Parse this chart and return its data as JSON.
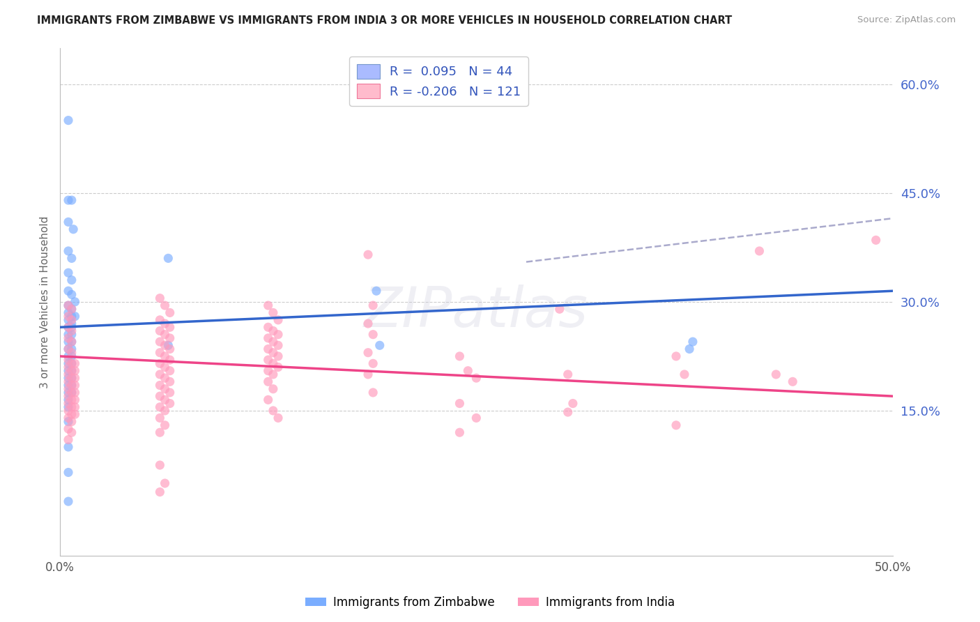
{
  "title": "IMMIGRANTS FROM ZIMBABWE VS IMMIGRANTS FROM INDIA 3 OR MORE VEHICLES IN HOUSEHOLD CORRELATION CHART",
  "source": "Source: ZipAtlas.com",
  "ylabel": "3 or more Vehicles in Household",
  "xlim": [
    0.0,
    0.5
  ],
  "ylim": [
    -0.05,
    0.65
  ],
  "right_yticks": [
    0.15,
    0.3,
    0.45,
    0.6
  ],
  "right_yticklabels": [
    "15.0%",
    "30.0%",
    "45.0%",
    "60.0%"
  ],
  "watermark": "ZIPatlas",
  "zimbabwe_color": "#7aadff",
  "india_color": "#ff99bb",
  "zimbabwe_line_color": "#3366cc",
  "india_line_color": "#ee4488",
  "dashed_line_color": "#aaaacc",
  "zim_line": [
    0.0,
    0.265,
    0.5,
    0.315
  ],
  "ind_line": [
    0.0,
    0.225,
    0.5,
    0.17
  ],
  "dash_line": [
    0.28,
    0.355,
    0.5,
    0.415
  ],
  "zimbabwe_points": [
    [
      0.005,
      0.55
    ],
    [
      0.005,
      0.44
    ],
    [
      0.007,
      0.44
    ],
    [
      0.005,
      0.41
    ],
    [
      0.008,
      0.4
    ],
    [
      0.005,
      0.37
    ],
    [
      0.007,
      0.36
    ],
    [
      0.005,
      0.34
    ],
    [
      0.007,
      0.33
    ],
    [
      0.005,
      0.315
    ],
    [
      0.007,
      0.31
    ],
    [
      0.009,
      0.3
    ],
    [
      0.005,
      0.295
    ],
    [
      0.007,
      0.29
    ],
    [
      0.005,
      0.285
    ],
    [
      0.007,
      0.28
    ],
    [
      0.009,
      0.28
    ],
    [
      0.005,
      0.275
    ],
    [
      0.007,
      0.27
    ],
    [
      0.005,
      0.265
    ],
    [
      0.007,
      0.265
    ],
    [
      0.005,
      0.255
    ],
    [
      0.007,
      0.255
    ],
    [
      0.005,
      0.245
    ],
    [
      0.007,
      0.245
    ],
    [
      0.005,
      0.235
    ],
    [
      0.007,
      0.235
    ],
    [
      0.005,
      0.225
    ],
    [
      0.007,
      0.225
    ],
    [
      0.005,
      0.215
    ],
    [
      0.007,
      0.215
    ],
    [
      0.005,
      0.205
    ],
    [
      0.007,
      0.205
    ],
    [
      0.005,
      0.195
    ],
    [
      0.007,
      0.195
    ],
    [
      0.005,
      0.185
    ],
    [
      0.007,
      0.185
    ],
    [
      0.005,
      0.175
    ],
    [
      0.007,
      0.175
    ],
    [
      0.005,
      0.165
    ],
    [
      0.005,
      0.155
    ],
    [
      0.005,
      0.135
    ],
    [
      0.005,
      0.1
    ],
    [
      0.005,
      0.065
    ],
    [
      0.005,
      0.025
    ],
    [
      0.065,
      0.36
    ],
    [
      0.065,
      0.24
    ],
    [
      0.19,
      0.315
    ],
    [
      0.192,
      0.24
    ],
    [
      0.38,
      0.245
    ],
    [
      0.378,
      0.235
    ]
  ],
  "india_points": [
    [
      0.005,
      0.295
    ],
    [
      0.007,
      0.29
    ],
    [
      0.005,
      0.28
    ],
    [
      0.007,
      0.275
    ],
    [
      0.005,
      0.265
    ],
    [
      0.007,
      0.26
    ],
    [
      0.005,
      0.25
    ],
    [
      0.007,
      0.245
    ],
    [
      0.005,
      0.235
    ],
    [
      0.007,
      0.23
    ],
    [
      0.005,
      0.22
    ],
    [
      0.007,
      0.215
    ],
    [
      0.009,
      0.215
    ],
    [
      0.005,
      0.21
    ],
    [
      0.007,
      0.205
    ],
    [
      0.009,
      0.205
    ],
    [
      0.005,
      0.2
    ],
    [
      0.007,
      0.195
    ],
    [
      0.009,
      0.195
    ],
    [
      0.005,
      0.19
    ],
    [
      0.007,
      0.185
    ],
    [
      0.009,
      0.185
    ],
    [
      0.005,
      0.18
    ],
    [
      0.007,
      0.175
    ],
    [
      0.009,
      0.175
    ],
    [
      0.005,
      0.17
    ],
    [
      0.007,
      0.165
    ],
    [
      0.009,
      0.165
    ],
    [
      0.005,
      0.16
    ],
    [
      0.007,
      0.155
    ],
    [
      0.009,
      0.155
    ],
    [
      0.005,
      0.15
    ],
    [
      0.007,
      0.145
    ],
    [
      0.009,
      0.145
    ],
    [
      0.005,
      0.14
    ],
    [
      0.007,
      0.135
    ],
    [
      0.005,
      0.125
    ],
    [
      0.007,
      0.12
    ],
    [
      0.005,
      0.11
    ],
    [
      0.06,
      0.305
    ],
    [
      0.063,
      0.295
    ],
    [
      0.066,
      0.285
    ],
    [
      0.06,
      0.275
    ],
    [
      0.063,
      0.27
    ],
    [
      0.066,
      0.265
    ],
    [
      0.06,
      0.26
    ],
    [
      0.063,
      0.255
    ],
    [
      0.066,
      0.25
    ],
    [
      0.06,
      0.245
    ],
    [
      0.063,
      0.24
    ],
    [
      0.066,
      0.235
    ],
    [
      0.06,
      0.23
    ],
    [
      0.063,
      0.225
    ],
    [
      0.066,
      0.22
    ],
    [
      0.06,
      0.215
    ],
    [
      0.063,
      0.21
    ],
    [
      0.066,
      0.205
    ],
    [
      0.06,
      0.2
    ],
    [
      0.063,
      0.195
    ],
    [
      0.066,
      0.19
    ],
    [
      0.06,
      0.185
    ],
    [
      0.063,
      0.18
    ],
    [
      0.066,
      0.175
    ],
    [
      0.06,
      0.17
    ],
    [
      0.063,
      0.165
    ],
    [
      0.066,
      0.16
    ],
    [
      0.06,
      0.155
    ],
    [
      0.063,
      0.15
    ],
    [
      0.06,
      0.14
    ],
    [
      0.063,
      0.13
    ],
    [
      0.06,
      0.12
    ],
    [
      0.06,
      0.075
    ],
    [
      0.063,
      0.05
    ],
    [
      0.06,
      0.038
    ],
    [
      0.125,
      0.295
    ],
    [
      0.128,
      0.285
    ],
    [
      0.131,
      0.275
    ],
    [
      0.125,
      0.265
    ],
    [
      0.128,
      0.26
    ],
    [
      0.131,
      0.255
    ],
    [
      0.125,
      0.25
    ],
    [
      0.128,
      0.245
    ],
    [
      0.131,
      0.24
    ],
    [
      0.125,
      0.235
    ],
    [
      0.128,
      0.23
    ],
    [
      0.131,
      0.225
    ],
    [
      0.125,
      0.22
    ],
    [
      0.128,
      0.215
    ],
    [
      0.131,
      0.21
    ],
    [
      0.125,
      0.205
    ],
    [
      0.128,
      0.2
    ],
    [
      0.125,
      0.19
    ],
    [
      0.128,
      0.18
    ],
    [
      0.125,
      0.165
    ],
    [
      0.128,
      0.15
    ],
    [
      0.131,
      0.14
    ],
    [
      0.185,
      0.365
    ],
    [
      0.188,
      0.295
    ],
    [
      0.185,
      0.27
    ],
    [
      0.188,
      0.255
    ],
    [
      0.185,
      0.23
    ],
    [
      0.188,
      0.215
    ],
    [
      0.185,
      0.2
    ],
    [
      0.188,
      0.175
    ],
    [
      0.24,
      0.225
    ],
    [
      0.245,
      0.205
    ],
    [
      0.25,
      0.195
    ],
    [
      0.24,
      0.16
    ],
    [
      0.25,
      0.14
    ],
    [
      0.24,
      0.12
    ],
    [
      0.3,
      0.29
    ],
    [
      0.305,
      0.2
    ],
    [
      0.308,
      0.16
    ],
    [
      0.305,
      0.148
    ],
    [
      0.37,
      0.225
    ],
    [
      0.375,
      0.2
    ],
    [
      0.37,
      0.13
    ],
    [
      0.42,
      0.37
    ],
    [
      0.43,
      0.2
    ],
    [
      0.44,
      0.19
    ],
    [
      0.49,
      0.385
    ]
  ]
}
